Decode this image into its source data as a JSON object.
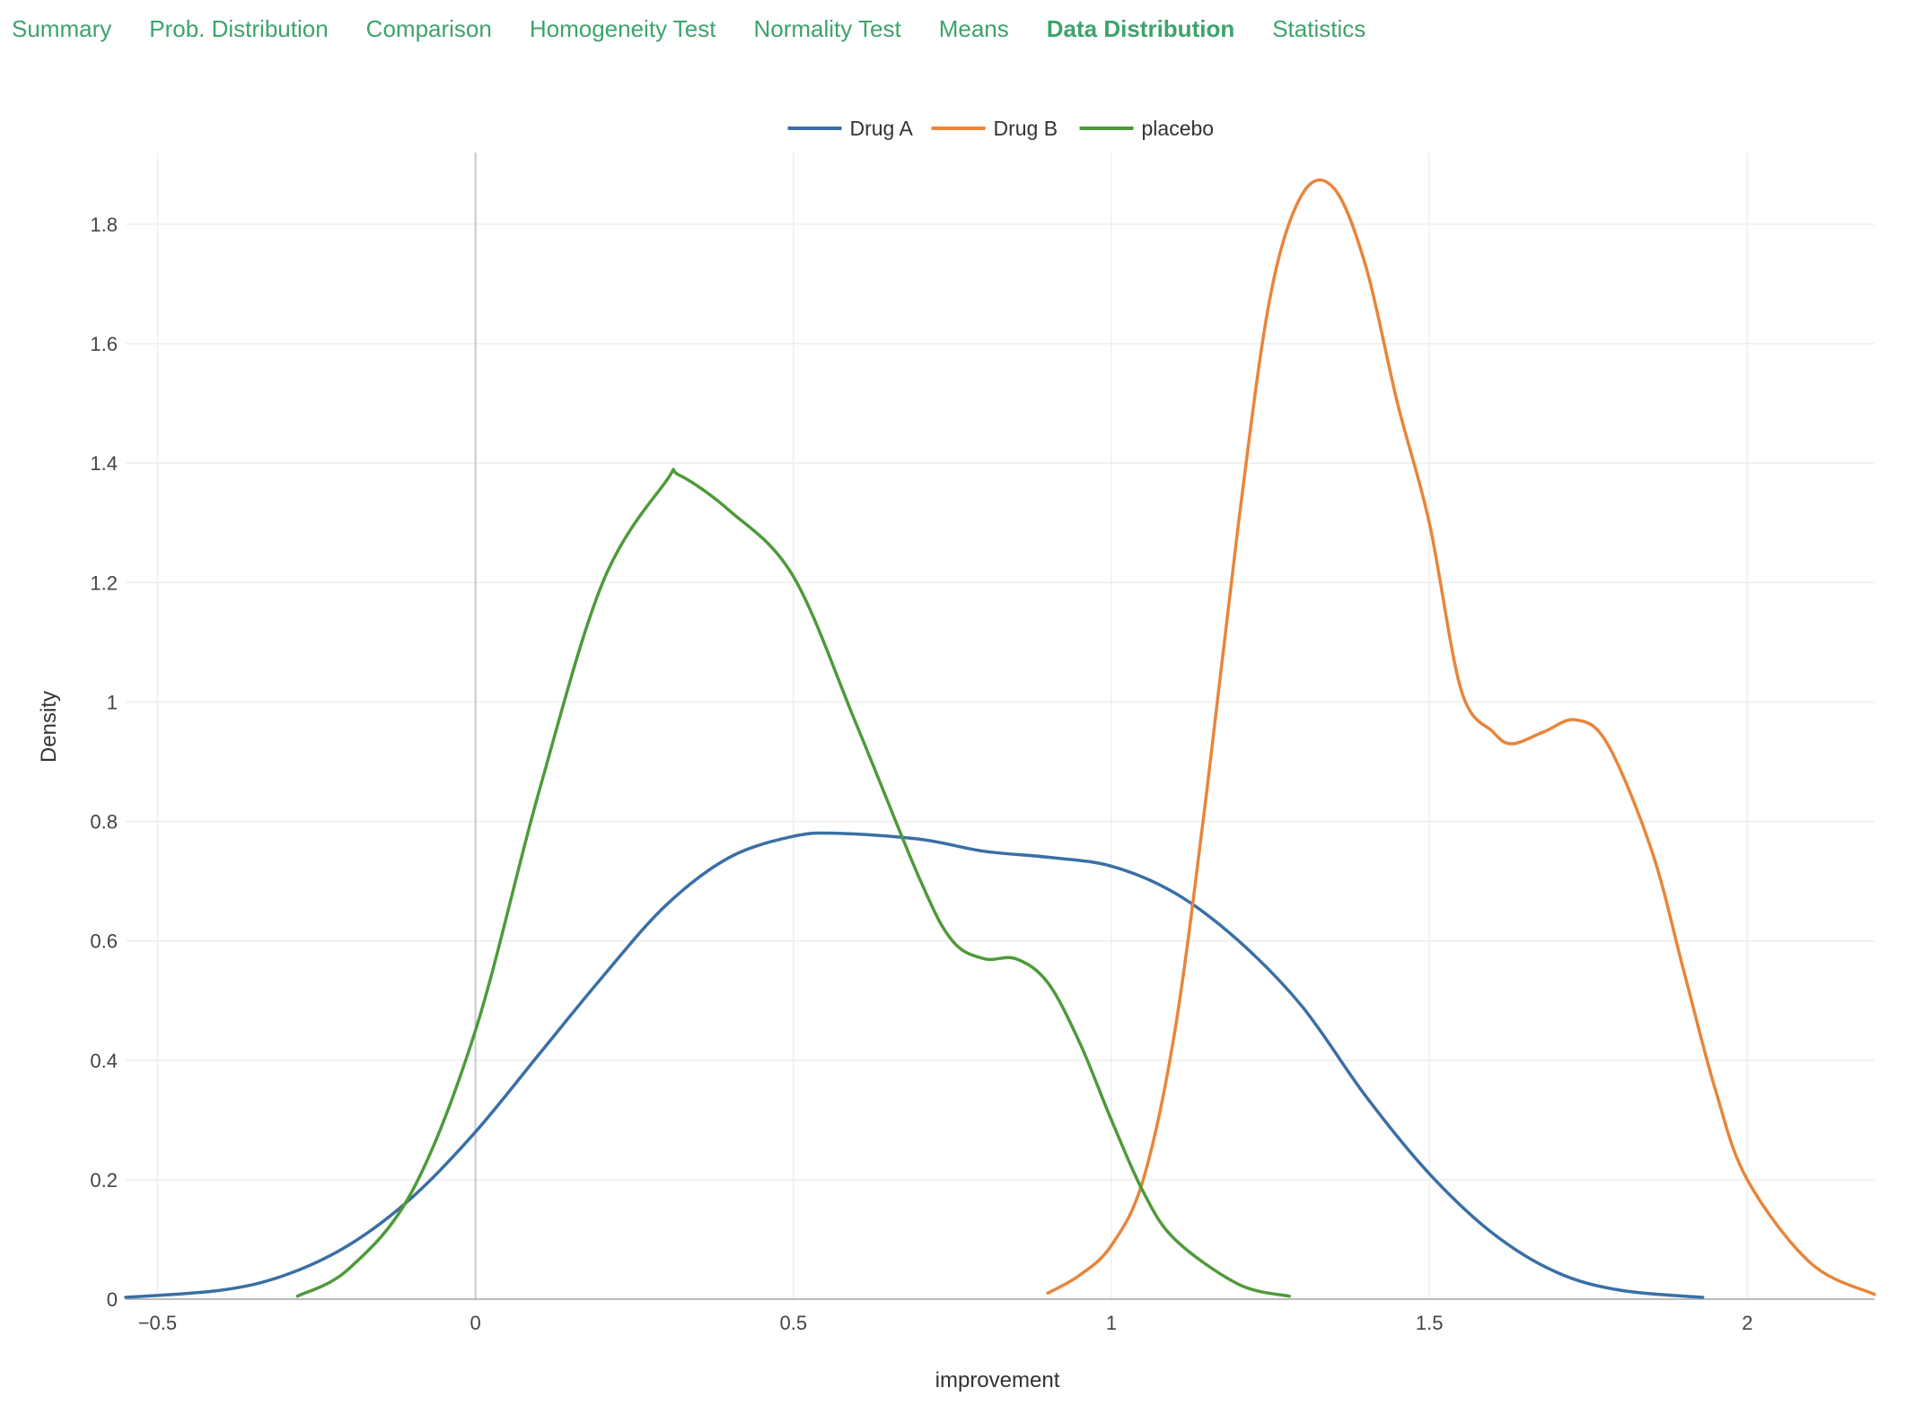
{
  "tabs": [
    {
      "label": "Summary",
      "active": false
    },
    {
      "label": "Prob. Distribution",
      "active": false
    },
    {
      "label": "Comparison",
      "active": false
    },
    {
      "label": "Homogeneity Test",
      "active": false
    },
    {
      "label": "Normality Test",
      "active": false
    },
    {
      "label": "Means",
      "active": false
    },
    {
      "label": "Data Distribution",
      "active": true
    },
    {
      "label": "Statistics",
      "active": false
    }
  ],
  "colors": {
    "tab_text": "#3da36b",
    "grid": "#eeeeee",
    "zero_line": "#c8c8c8",
    "axis_line": "#bbbbbb"
  },
  "chart_data": {
    "type": "line",
    "xlabel": "improvement",
    "ylabel": "Density",
    "xlim": [
      -0.55,
      2.2
    ],
    "ylim": [
      0,
      1.92
    ],
    "x_ticks": [
      -0.5,
      0,
      0.5,
      1,
      1.5,
      2
    ],
    "x_tick_labels": [
      "−0.5",
      "0",
      "0.5",
      "1",
      "1.5",
      "2"
    ],
    "y_ticks": [
      0,
      0.2,
      0.4,
      0.6,
      0.8,
      1,
      1.2,
      1.4,
      1.6,
      1.8
    ],
    "y_tick_labels": [
      "0",
      "0.2",
      "0.4",
      "0.6",
      "0.8",
      "1",
      "1.2",
      "1.4",
      "1.6",
      "1.8"
    ],
    "grid": true,
    "legend_position": "top-center",
    "series": [
      {
        "name": "Drug A",
        "color": "#3a6fa5",
        "x": [
          -0.55,
          -0.4,
          -0.3,
          -0.2,
          -0.1,
          0.0,
          0.1,
          0.2,
          0.3,
          0.4,
          0.5,
          0.57,
          0.7,
          0.8,
          0.9,
          1.0,
          1.1,
          1.2,
          1.3,
          1.4,
          1.5,
          1.6,
          1.7,
          1.8,
          1.93
        ],
        "y": [
          0.003,
          0.015,
          0.04,
          0.09,
          0.17,
          0.28,
          0.41,
          0.54,
          0.66,
          0.74,
          0.775,
          0.78,
          0.77,
          0.75,
          0.74,
          0.725,
          0.68,
          0.6,
          0.49,
          0.34,
          0.21,
          0.11,
          0.045,
          0.015,
          0.003
        ]
      },
      {
        "name": "Drug B",
        "color": "#e8853a",
        "x": [
          0.9,
          0.95,
          1.0,
          1.05,
          1.1,
          1.15,
          1.2,
          1.25,
          1.3,
          1.35,
          1.4,
          1.45,
          1.5,
          1.55,
          1.6,
          1.63,
          1.68,
          1.73,
          1.78,
          1.85,
          1.9,
          1.95,
          2.0,
          2.1,
          2.2
        ],
        "y": [
          0.01,
          0.04,
          0.09,
          0.2,
          0.45,
          0.85,
          1.3,
          1.68,
          1.85,
          1.86,
          1.73,
          1.5,
          1.3,
          1.02,
          0.95,
          0.93,
          0.95,
          0.97,
          0.93,
          0.75,
          0.55,
          0.35,
          0.2,
          0.06,
          0.008
        ]
      },
      {
        "name": "placebo",
        "color": "#4e9a3a",
        "x": [
          -0.28,
          -0.2,
          -0.1,
          0.0,
          0.1,
          0.2,
          0.3,
          0.32,
          0.4,
          0.5,
          0.6,
          0.7,
          0.75,
          0.8,
          0.85,
          0.9,
          0.95,
          1.0,
          1.05,
          1.1,
          1.2,
          1.28
        ],
        "y": [
          0.005,
          0.05,
          0.18,
          0.45,
          0.85,
          1.2,
          1.37,
          1.38,
          1.32,
          1.21,
          0.96,
          0.7,
          0.6,
          0.57,
          0.57,
          0.53,
          0.43,
          0.3,
          0.18,
          0.1,
          0.025,
          0.005
        ]
      }
    ]
  }
}
